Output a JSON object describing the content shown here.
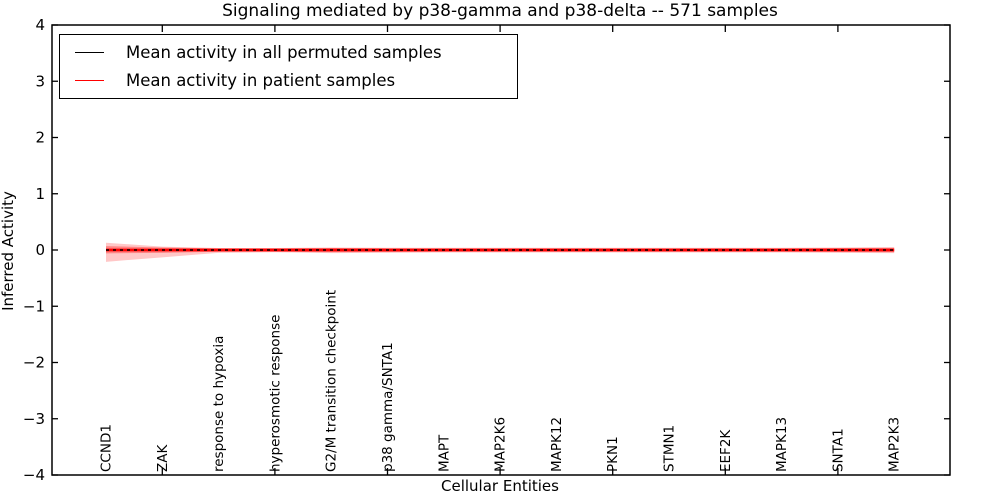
{
  "figure": {
    "title": "Signaling mediated by p38-gamma and p38-delta -- 571 samples"
  },
  "legend": {
    "entries": [
      {
        "label": "Mean activity in all permuted samples",
        "color": "#000000"
      },
      {
        "label": "Mean activity in patient samples",
        "color": "#ff0000"
      }
    ]
  },
  "chart_data": {
    "type": "line",
    "title": "Signaling mediated by p38-gamma and p38-delta -- 571 samples",
    "xlabel": "Cellular Entities",
    "ylabel": "Inferred Activity",
    "ylim": [
      -4,
      4
    ],
    "grid": false,
    "legend_position": "upper left",
    "y_tick_labels": [
      "4",
      "3",
      "2",
      "1",
      "0",
      "−1",
      "−2",
      "−3",
      "−4"
    ],
    "y_tick_values": [
      4,
      3,
      2,
      1,
      0,
      -1,
      -2,
      -3,
      -4
    ],
    "x_tick_indices": [
      1,
      3,
      5,
      7,
      9,
      11,
      13
    ],
    "categories": [
      "CCND1",
      "ZAK",
      "response to hypoxia",
      "hyperosmotic response",
      "G2/M transition checkpoint",
      "p38 gamma/SNTA1",
      "MAPT",
      "MAP2K6",
      "MAPK12",
      "PKN1",
      "STMN1",
      "EEF2K",
      "MAPK13",
      "SNTA1",
      "MAP2K3"
    ],
    "series": [
      {
        "name": "Mean activity in all permuted samples",
        "color": "#000000",
        "style": "dashed",
        "values": [
          0,
          0,
          0,
          0,
          0,
          0,
          0,
          0,
          0,
          0,
          0,
          0,
          0,
          0,
          0
        ]
      },
      {
        "name": "Mean activity in patient samples",
        "color": "#ff0000",
        "style": "solid",
        "values": [
          0,
          0,
          0,
          0,
          0,
          0,
          0,
          0,
          0,
          0,
          0,
          0,
          0,
          0,
          0
        ]
      }
    ],
    "bands": [
      {
        "name": "patient-std-outer",
        "color": "#ff0000",
        "opacity": 0.22,
        "upper": [
          0.13,
          0.06,
          0.035,
          0.035,
          0.045,
          0.04,
          0.04,
          0.04,
          0.04,
          0.04,
          0.04,
          0.04,
          0.04,
          0.045,
          0.05
        ],
        "lower": [
          -0.21,
          -0.13,
          -0.05,
          -0.04,
          -0.055,
          -0.05,
          -0.045,
          -0.045,
          -0.045,
          -0.045,
          -0.045,
          -0.045,
          -0.045,
          -0.05,
          -0.055
        ]
      },
      {
        "name": "patient-std-inner",
        "color": "#ff0000",
        "opacity": 0.33,
        "upper": [
          0.07,
          0.045,
          0.03,
          0.03,
          0.035,
          0.03,
          0.03,
          0.03,
          0.03,
          0.03,
          0.03,
          0.03,
          0.03,
          0.035,
          0.04
        ],
        "lower": [
          -0.06,
          -0.05,
          -0.03,
          -0.03,
          -0.04,
          -0.035,
          -0.03,
          -0.03,
          -0.03,
          -0.03,
          -0.03,
          -0.03,
          -0.03,
          -0.035,
          -0.04
        ]
      }
    ]
  }
}
